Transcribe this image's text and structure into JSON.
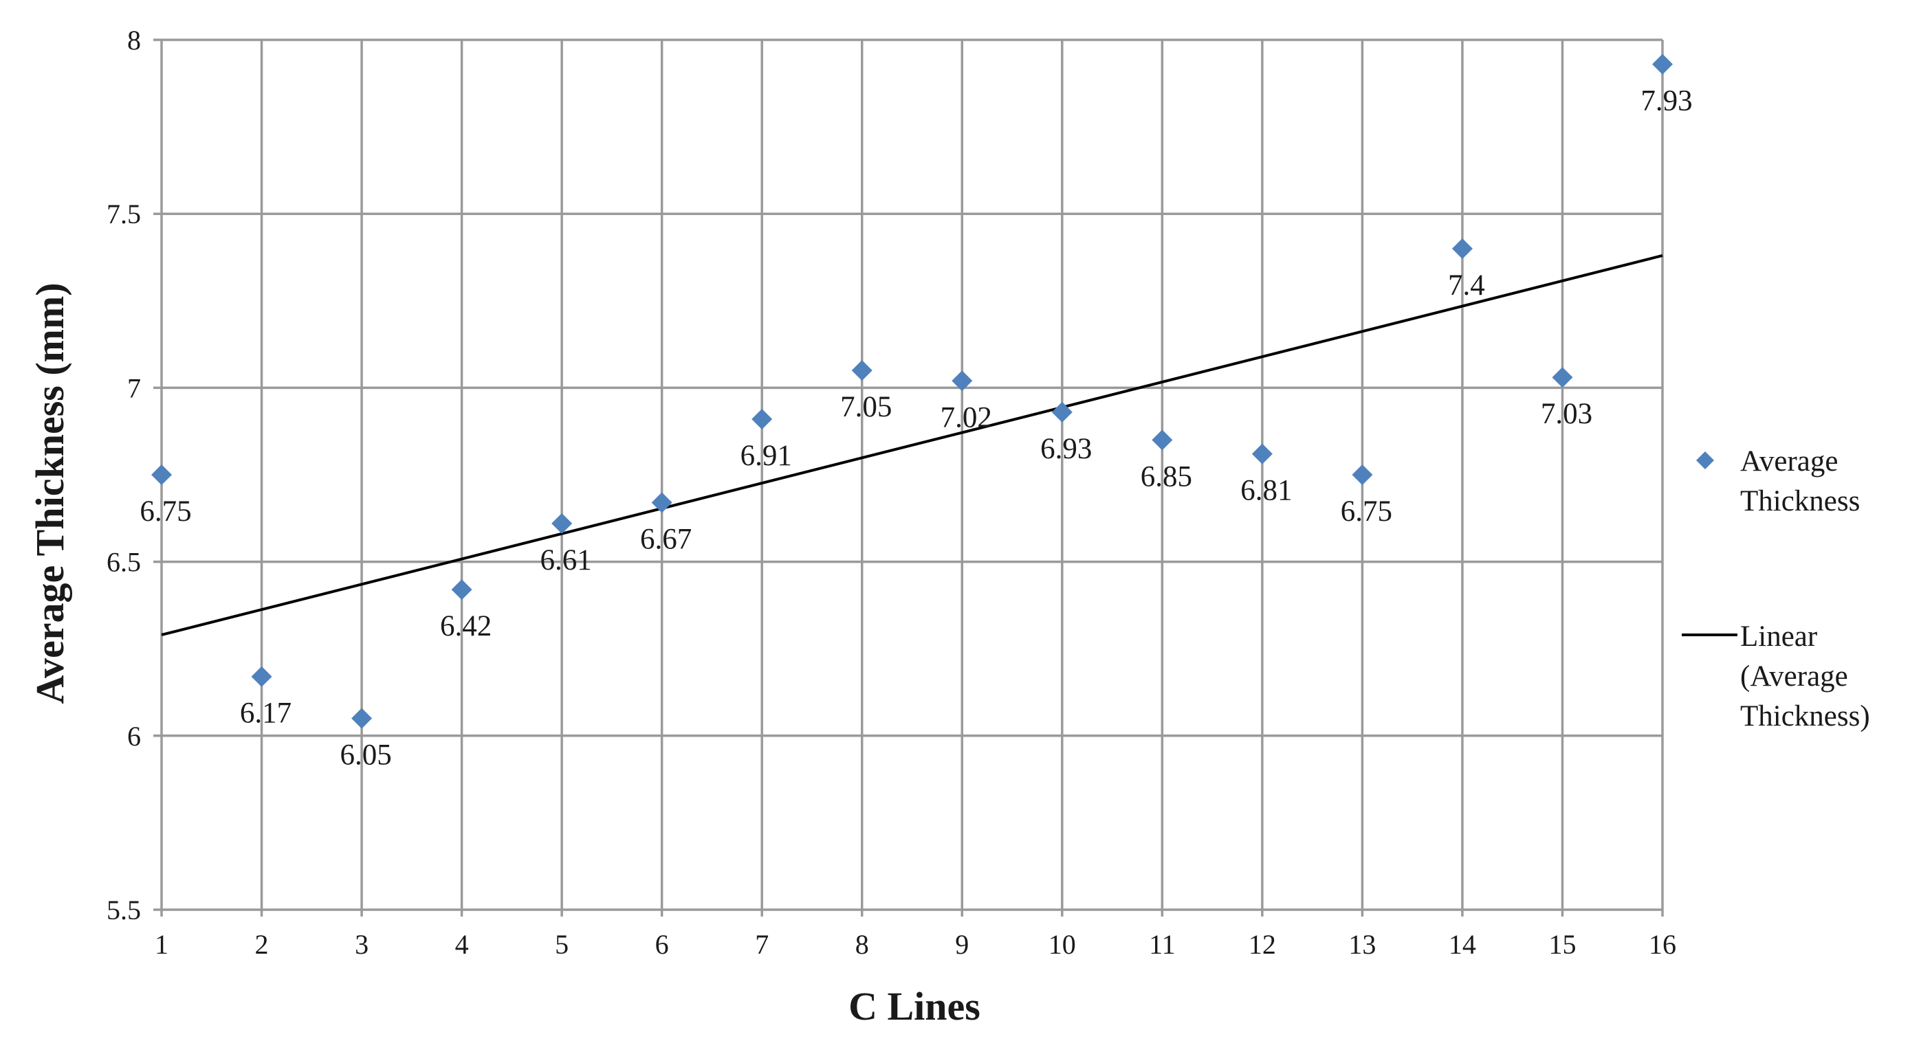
{
  "chart_data": {
    "type": "scatter",
    "x_axis": {
      "label": "C Lines",
      "ticks": [
        "1",
        "2",
        "3",
        "4",
        "5",
        "6",
        "7",
        "8",
        "9",
        "10",
        "11",
        "12",
        "13",
        "14",
        "15",
        "16"
      ],
      "range": [
        1,
        16
      ]
    },
    "y_axis": {
      "label": "Average Thickness (mm)",
      "ticks": [
        "5.5",
        "6",
        "6.5",
        "7",
        "7.5",
        "8"
      ],
      "range": [
        5.5,
        8
      ]
    },
    "grid": true,
    "series": [
      {
        "name": "Average Thickness",
        "color": "#4f81bd",
        "marker": "diamond",
        "x": [
          1,
          2,
          3,
          4,
          5,
          6,
          7,
          8,
          9,
          10,
          11,
          12,
          13,
          14,
          15,
          16
        ],
        "y": [
          6.75,
          6.17,
          6.05,
          6.42,
          6.61,
          6.67,
          6.91,
          7.05,
          7.02,
          6.93,
          6.85,
          6.81,
          6.75,
          7.4,
          7.03,
          7.93
        ],
        "data_labels": [
          "6.75",
          "6.17",
          "6.05",
          "6.42",
          "6.61",
          "6.67",
          "6.91",
          "7.05",
          "7.02",
          "6.93",
          "6.85",
          "6.81",
          "6.75",
          "7.4",
          "7.03",
          "7.93"
        ]
      }
    ],
    "trendline": {
      "name_lines": [
        "Linear",
        "(Average",
        "Thickness)"
      ],
      "type": "linear",
      "color": "#000000",
      "start": [
        1,
        6.29
      ],
      "end": [
        16,
        7.38
      ]
    },
    "legend": {
      "position": "right",
      "marker_entry_lines": [
        "Average",
        "Thickness"
      ]
    }
  }
}
